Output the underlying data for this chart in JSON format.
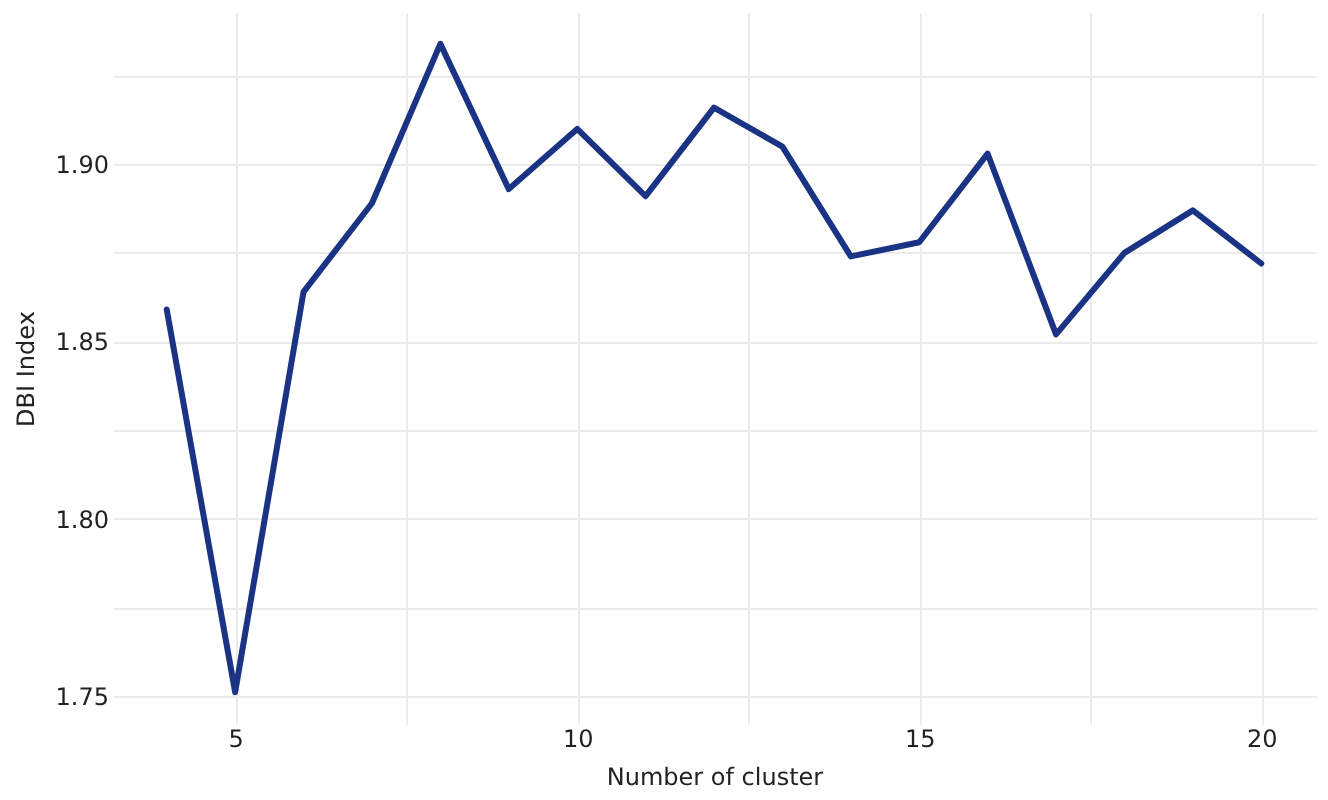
{
  "chart_data": {
    "type": "line",
    "xlabel": "Number of cluster",
    "ylabel": "DBI Index",
    "x": [
      4,
      5,
      6,
      7,
      8,
      9,
      10,
      11,
      12,
      13,
      14,
      15,
      16,
      17,
      18,
      19,
      20
    ],
    "series": [
      {
        "color": "#1b3384",
        "values": [
          1.859,
          1.751,
          1.864,
          1.889,
          1.934,
          1.893,
          1.91,
          1.891,
          1.916,
          1.905,
          1.874,
          1.878,
          1.903,
          1.852,
          1.875,
          1.887,
          1.872
        ]
      }
    ],
    "xlim": [
      3.2,
      20.8
    ],
    "ylim": [
      1.742,
      1.943
    ],
    "xticks": [
      5,
      {
        "value": 7.5,
        "label": null
      },
      10,
      {
        "value": 12.5,
        "label": null
      },
      15,
      {
        "value": 17.5,
        "label": null
      },
      20
    ],
    "yticks": [
      {
        "value": 1.75,
        "label": "1.75"
      },
      {
        "value": 1.775,
        "label": null
      },
      {
        "value": 1.8,
        "label": "1.80"
      },
      {
        "value": 1.825,
        "label": null
      },
      {
        "value": 1.85,
        "label": "1.85"
      },
      {
        "value": 1.875,
        "label": null
      },
      {
        "value": 1.9,
        "label": "1.90"
      },
      {
        "value": 1.925,
        "label": null
      }
    ],
    "grid": true,
    "marker": "none",
    "line_style": "solid"
  }
}
